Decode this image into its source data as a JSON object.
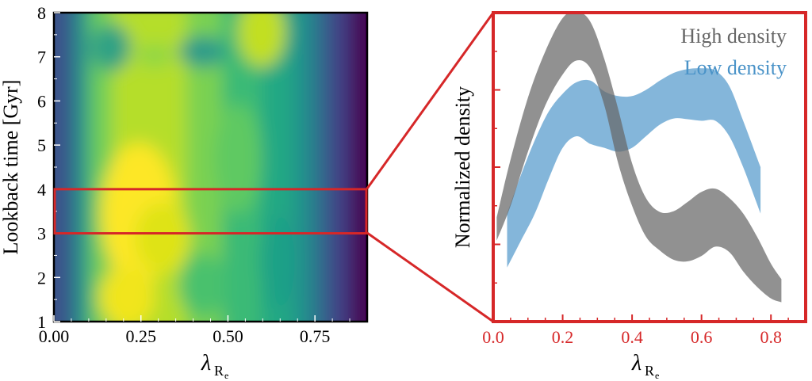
{
  "chart_data": [
    {
      "type": "heatmap",
      "ylabel": "Lookback time [Gyr]",
      "xlabel_main": "λ",
      "xlabel_sub": "R",
      "xlabel_subsub": "e",
      "xlim": [
        0.0,
        0.9
      ],
      "ylim": [
        1,
        8
      ],
      "x_ticks": [
        "0.00",
        "0.25",
        "0.50",
        "0.75"
      ],
      "x_tick_values": [
        0.0,
        0.25,
        0.5,
        0.75
      ],
      "y_ticks": [
        "1",
        "2",
        "3",
        "4",
        "5",
        "6",
        "7",
        "8"
      ],
      "y_tick_values": [
        1,
        2,
        3,
        4,
        5,
        6,
        7,
        8
      ],
      "colormap": "viridis",
      "highlight": {
        "y_range": [
          3,
          4
        ],
        "color": "#d62728"
      }
    },
    {
      "type": "area",
      "ylabel": "Normalized density",
      "xlabel_main": "λ",
      "xlabel_sub": "R",
      "xlabel_subsub": "e",
      "xlim": [
        0.0,
        0.9
      ],
      "x_ticks": [
        "0.0",
        "0.2",
        "0.4",
        "0.6",
        "0.8"
      ],
      "x_tick_values": [
        0.0,
        0.2,
        0.4,
        0.6,
        0.8
      ],
      "y_tick_values": [
        0,
        1,
        2,
        3,
        4
      ],
      "ylim": [
        0,
        4
      ],
      "axis_color": "#d62728",
      "legend_position": "top-right",
      "series": [
        {
          "name": "High density",
          "color": "#666666",
          "x": [
            0.01,
            0.05,
            0.1,
            0.15,
            0.2,
            0.24,
            0.28,
            0.32,
            0.36,
            0.4,
            0.44,
            0.48,
            0.52,
            0.56,
            0.6,
            0.64,
            0.68,
            0.72,
            0.76,
            0.8,
            0.83
          ],
          "upper": [
            1.35,
            2.1,
            2.9,
            3.5,
            3.93,
            4.02,
            3.88,
            3.4,
            2.75,
            2.05,
            1.6,
            1.42,
            1.43,
            1.55,
            1.68,
            1.72,
            1.6,
            1.4,
            1.1,
            0.75,
            0.55
          ],
          "lower": [
            1.05,
            1.5,
            2.2,
            2.8,
            3.2,
            3.38,
            3.28,
            2.8,
            2.05,
            1.5,
            1.1,
            0.92,
            0.8,
            0.78,
            0.85,
            0.97,
            0.9,
            0.65,
            0.45,
            0.3,
            0.25
          ]
        },
        {
          "name": "Low density",
          "color": "#4a93c8",
          "x": [
            0.04,
            0.08,
            0.12,
            0.16,
            0.2,
            0.24,
            0.28,
            0.32,
            0.36,
            0.4,
            0.44,
            0.48,
            0.52,
            0.56,
            0.6,
            0.64,
            0.68,
            0.72,
            0.77
          ],
          "upper": [
            1.4,
            1.9,
            2.35,
            2.72,
            2.95,
            3.1,
            3.12,
            2.98,
            2.92,
            2.92,
            3.0,
            3.12,
            3.22,
            3.27,
            3.28,
            3.25,
            3.05,
            2.6,
            2.0
          ],
          "lower": [
            0.7,
            1.05,
            1.4,
            1.85,
            2.25,
            2.4,
            2.3,
            2.25,
            2.2,
            2.25,
            2.4,
            2.55,
            2.63,
            2.62,
            2.6,
            2.6,
            2.4,
            2.0,
            1.4
          ]
        }
      ]
    }
  ],
  "connector": {
    "color": "#d62728"
  }
}
